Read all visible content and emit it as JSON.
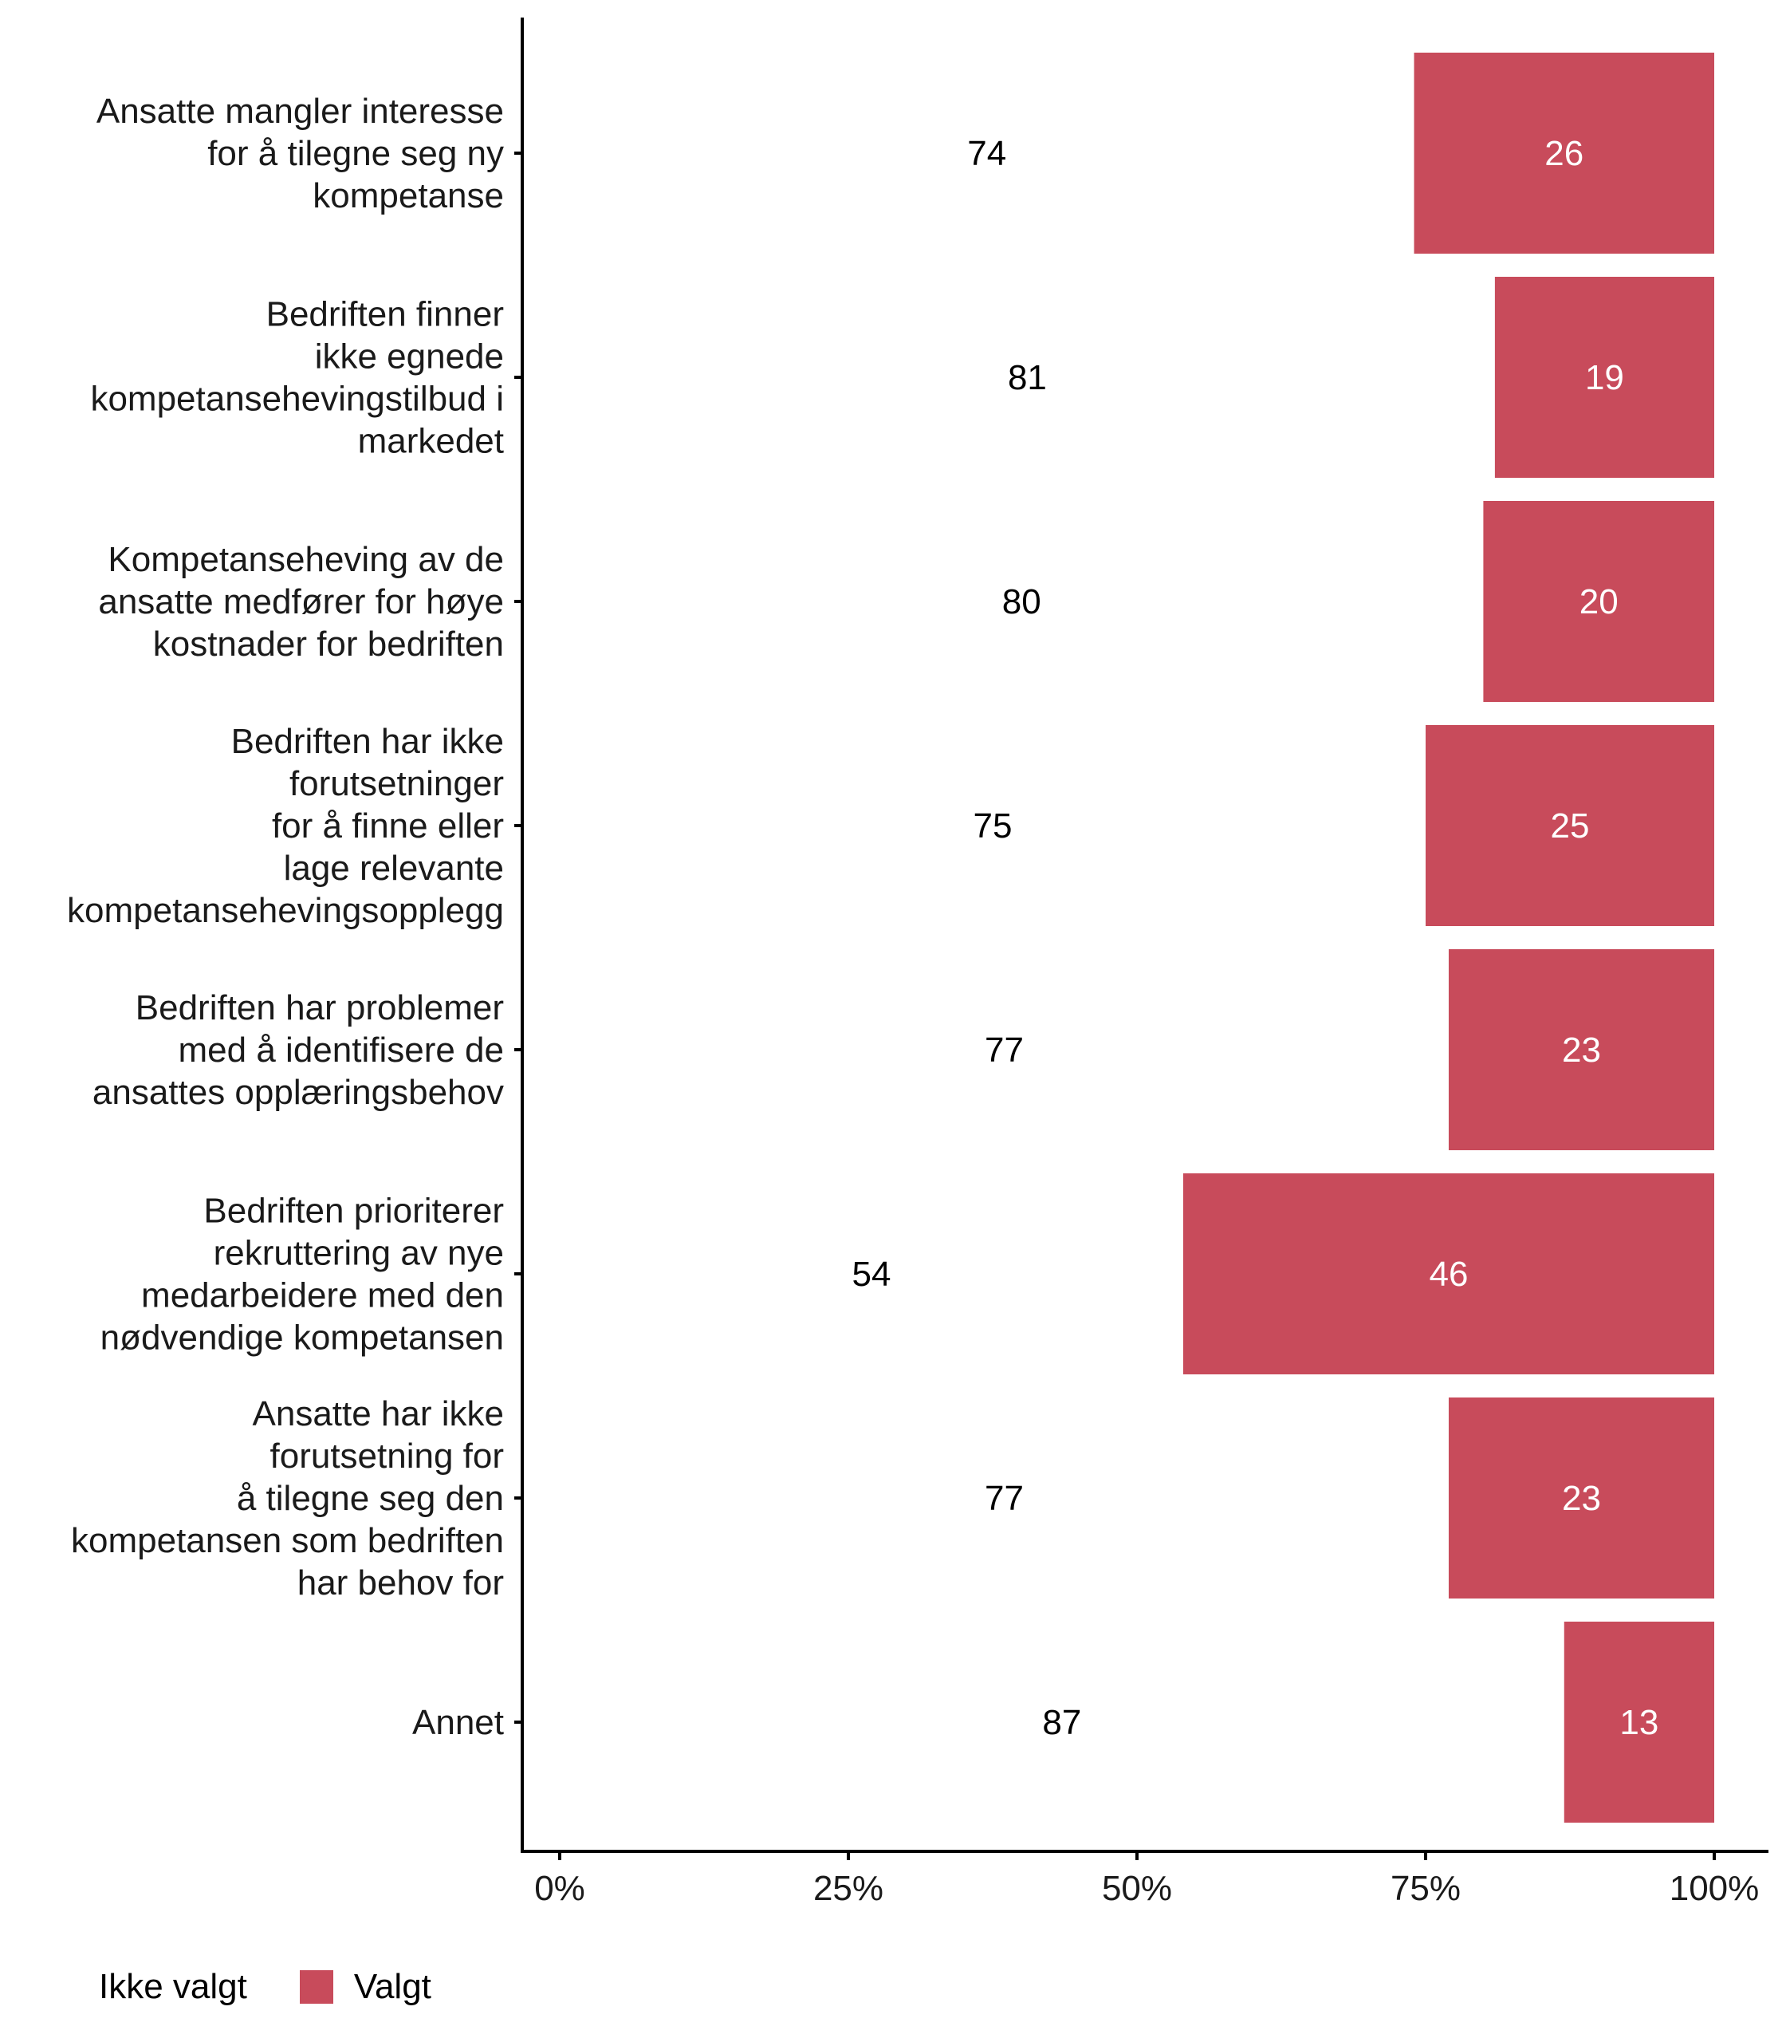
{
  "chart_data": {
    "type": "bar",
    "orientation": "horizontal",
    "stacked": true,
    "percent": true,
    "title": "",
    "xlabel": "",
    "ylabel": "",
    "xlim": [
      0,
      100
    ],
    "x_ticks": [
      "0%",
      "25%",
      "50%",
      "75%",
      "100%"
    ],
    "x_tick_values": [
      0,
      25,
      50,
      75,
      100
    ],
    "grid": false,
    "legend_position": "bottom-left",
    "categories": [
      [
        "Ansatte mangler interesse",
        "for å tilegne seg ny",
        "kompetanse"
      ],
      [
        "Bedriften finner",
        "ikke egnede",
        "kompetansehevingstilbud i",
        "markedet"
      ],
      [
        "Kompetanseheving av de",
        "ansatte medfører for høye",
        "kostnader for bedriften"
      ],
      [
        "Bedriften har ikke",
        "forutsetninger",
        "for å finne eller",
        "lage relevante",
        "kompetansehevingsopplegg"
      ],
      [
        "Bedriften har problemer",
        "med å identifisere de",
        "ansattes opplæringsbehov"
      ],
      [
        "Bedriften prioriterer",
        "rekruttering av nye",
        "medarbeidere med den",
        "nødvendige kompetansen"
      ],
      [
        "Ansatte har ikke",
        "forutsetning for",
        "å tilegne seg den",
        "kompetansen som bedriften",
        "har behov for"
      ],
      [
        "Annet"
      ]
    ],
    "series": [
      {
        "name": "Ikke valgt",
        "color": "#ffffff",
        "label_color": "#000000",
        "values": [
          74,
          81,
          80,
          75,
          77,
          54,
          77,
          87
        ]
      },
      {
        "name": "Valgt",
        "color": "#C84B5B",
        "label_color": "#ffffff",
        "values": [
          26,
          19,
          20,
          25,
          23,
          46,
          23,
          13
        ]
      }
    ]
  },
  "legend": {
    "items": [
      {
        "label": "Ikke valgt",
        "color": "#ffffff"
      },
      {
        "label": "Valgt",
        "color": "#C84B5B"
      }
    ]
  }
}
